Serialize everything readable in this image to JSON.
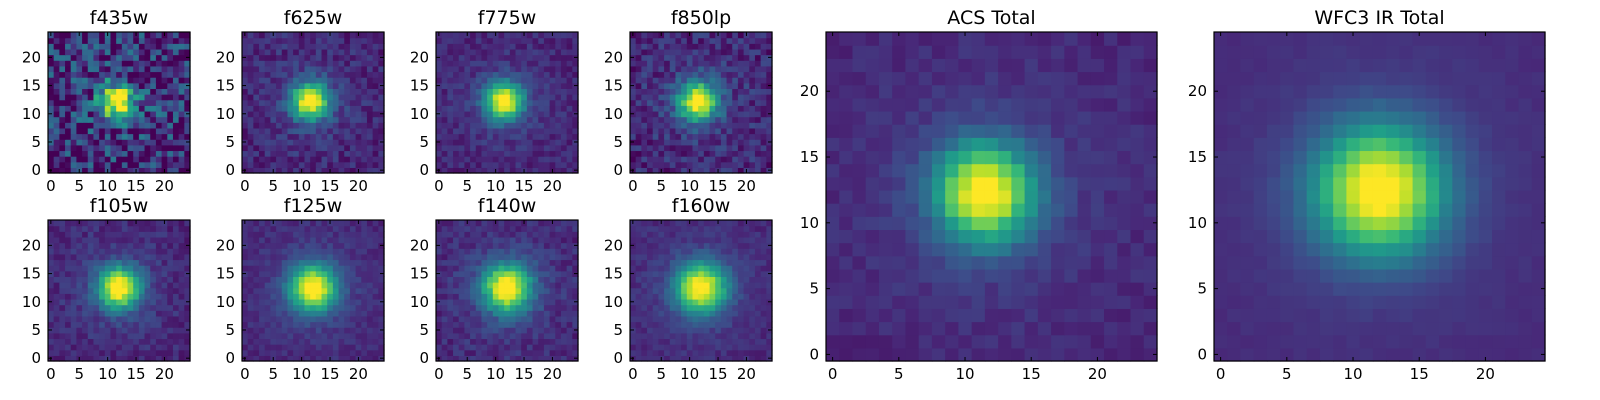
{
  "figure": {
    "background": "#ffffff",
    "colormap": "viridis"
  },
  "chart_data": [
    {
      "type": "heatmap",
      "title": "f435w",
      "size": 25,
      "center": [
        11.8,
        12.3
      ],
      "sigma": 2.2,
      "noise": 0.55,
      "seed": 11,
      "xticks": [
        0,
        5,
        10,
        15,
        20
      ],
      "yticks": [
        0,
        5,
        10,
        15,
        20
      ],
      "xlim": [
        -0.5,
        24.5
      ],
      "ylim": [
        -0.5,
        24.5
      ]
    },
    {
      "type": "heatmap",
      "title": "f625w",
      "size": 25,
      "center": [
        11.5,
        12.3
      ],
      "sigma": 2.3,
      "noise": 0.18,
      "seed": 23,
      "xticks": [
        0,
        5,
        10,
        15,
        20
      ],
      "yticks": [
        0,
        5,
        10,
        15,
        20
      ],
      "xlim": [
        -0.5,
        24.5
      ],
      "ylim": [
        -0.5,
        24.5
      ]
    },
    {
      "type": "heatmap",
      "title": "f775w",
      "size": 25,
      "center": [
        11.5,
        12.3
      ],
      "sigma": 2.3,
      "noise": 0.14,
      "seed": 37,
      "xticks": [
        0,
        5,
        10,
        15,
        20
      ],
      "yticks": [
        0,
        5,
        10,
        15,
        20
      ],
      "xlim": [
        -0.5,
        24.5
      ],
      "ylim": [
        -0.5,
        24.5
      ]
    },
    {
      "type": "heatmap",
      "title": "f850lp",
      "size": 25,
      "center": [
        11.5,
        12.3
      ],
      "sigma": 2.4,
      "noise": 0.22,
      "seed": 41,
      "xticks": [
        0,
        5,
        10,
        15,
        20
      ],
      "yticks": [
        0,
        5,
        10,
        15,
        20
      ],
      "xlim": [
        -0.5,
        24.5
      ],
      "ylim": [
        -0.5,
        24.5
      ]
    },
    {
      "type": "heatmap",
      "title": "f105w",
      "size": 25,
      "center": [
        12.0,
        12.5
      ],
      "sigma": 2.6,
      "noise": 0.14,
      "seed": 53,
      "xticks": [
        0,
        5,
        10,
        15,
        20
      ],
      "yticks": [
        0,
        5,
        10,
        15,
        20
      ],
      "xlim": [
        -0.5,
        24.5
      ],
      "ylim": [
        -0.5,
        24.5
      ]
    },
    {
      "type": "heatmap",
      "title": "f125w",
      "size": 25,
      "center": [
        12.0,
        12.5
      ],
      "sigma": 2.9,
      "noise": 0.1,
      "seed": 67,
      "xticks": [
        0,
        5,
        10,
        15,
        20
      ],
      "yticks": [
        0,
        5,
        10,
        15,
        20
      ],
      "xlim": [
        -0.5,
        24.5
      ],
      "ylim": [
        -0.5,
        24.5
      ]
    },
    {
      "type": "heatmap",
      "title": "f140w",
      "size": 25,
      "center": [
        12.0,
        12.5
      ],
      "sigma": 3.0,
      "noise": 0.14,
      "seed": 71,
      "xticks": [
        0,
        5,
        10,
        15,
        20
      ],
      "yticks": [
        0,
        5,
        10,
        15,
        20
      ],
      "xlim": [
        -0.5,
        24.5
      ],
      "ylim": [
        -0.5,
        24.5
      ]
    },
    {
      "type": "heatmap",
      "title": "f160w",
      "size": 25,
      "center": [
        12.0,
        12.5
      ],
      "sigma": 3.1,
      "noise": 0.1,
      "seed": 83,
      "xticks": [
        0,
        5,
        10,
        15,
        20
      ],
      "yticks": [
        0,
        5,
        10,
        15,
        20
      ],
      "xlim": [
        -0.5,
        24.5
      ],
      "ylim": [
        -0.5,
        24.5
      ]
    },
    {
      "type": "heatmap",
      "title": "ACS Total",
      "size": 25,
      "center": [
        11.5,
        12.3
      ],
      "sigma": 2.6,
      "noise": 0.08,
      "seed": 97,
      "xticks": [
        0,
        5,
        10,
        15,
        20
      ],
      "yticks": [
        0,
        5,
        10,
        15,
        20
      ],
      "xlim": [
        -0.5,
        24.5
      ],
      "ylim": [
        -0.5,
        24.5
      ]
    },
    {
      "type": "heatmap",
      "title": "WFC3 IR Total",
      "size": 25,
      "center": [
        12.0,
        12.5
      ],
      "sigma": 3.4,
      "noise": 0.03,
      "seed": 101,
      "xticks": [
        0,
        5,
        10,
        15,
        20
      ],
      "yticks": [
        0,
        5,
        10,
        15,
        20
      ],
      "xlim": [
        -0.5,
        24.5
      ],
      "ylim": [
        -0.5,
        24.5
      ]
    }
  ]
}
